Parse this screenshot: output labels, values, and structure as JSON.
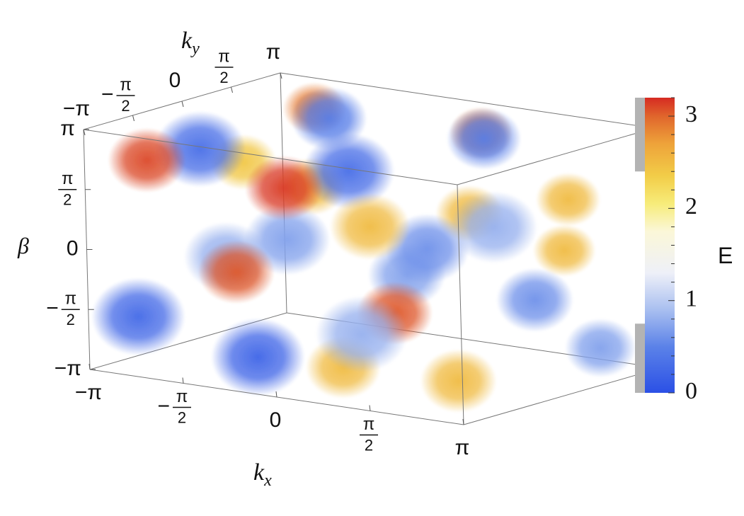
{
  "chart_data": {
    "type": "volume",
    "axes": {
      "x": {
        "label": "k",
        "sub": "x",
        "range": [
          -3.14159,
          3.14159
        ],
        "ticks": [
          {
            "v": -3.14159,
            "kind": "t",
            "t": "−π"
          },
          {
            "v": -1.5708,
            "kind": "f",
            "sign": "−",
            "num": "π",
            "den": "2"
          },
          {
            "v": 0,
            "kind": "t",
            "t": "0"
          },
          {
            "v": 1.5708,
            "kind": "f",
            "sign": "",
            "num": "π",
            "den": "2"
          },
          {
            "v": 3.14159,
            "kind": "t",
            "t": "π"
          }
        ]
      },
      "y": {
        "label": "k",
        "sub": "y",
        "range": [
          -3.14159,
          3.14159
        ],
        "ticks": [
          {
            "v": -3.14159,
            "kind": "t",
            "t": "−π"
          },
          {
            "v": -1.5708,
            "kind": "f",
            "sign": "−",
            "num": "π",
            "den": "2"
          },
          {
            "v": 0,
            "kind": "t",
            "t": "0"
          },
          {
            "v": 1.5708,
            "kind": "f",
            "sign": "",
            "num": "π",
            "den": "2"
          },
          {
            "v": 3.14159,
            "kind": "t",
            "t": "π"
          }
        ]
      },
      "z": {
        "label": "β",
        "range": [
          -3.14159,
          3.14159
        ],
        "ticks": [
          {
            "v": 3.14159,
            "kind": "t",
            "t": "π"
          },
          {
            "v": 1.5708,
            "kind": "f",
            "sign": "",
            "num": "π",
            "den": "2"
          },
          {
            "v": 0,
            "kind": "t",
            "t": "0"
          },
          {
            "v": -1.5708,
            "kind": "f",
            "sign": "−",
            "num": "π",
            "den": "2"
          },
          {
            "v": -3.14159,
            "kind": "t",
            "t": "−π"
          }
        ]
      }
    },
    "colorbar": {
      "label": "E",
      "range": [
        0,
        3.2
      ],
      "ticks": [
        {
          "v": 0,
          "t": "0"
        },
        {
          "v": 1,
          "t": "1"
        },
        {
          "v": 2,
          "t": "2"
        },
        {
          "v": 3,
          "t": "3"
        }
      ],
      "visible_bands": [
        [
          0,
          0.75
        ],
        [
          2.4,
          3.2
        ]
      ],
      "stops": [
        {
          "v": 0.0,
          "c": "#2b50e6"
        },
        {
          "v": 0.5,
          "c": "#5b82e8"
        },
        {
          "v": 0.9,
          "c": "#a9bff0"
        },
        {
          "v": 1.3,
          "c": "#eef0f8"
        },
        {
          "v": 1.75,
          "c": "#fbf7d8"
        },
        {
          "v": 2.05,
          "c": "#f7ec7a"
        },
        {
          "v": 2.35,
          "c": "#f2cd48"
        },
        {
          "v": 2.7,
          "c": "#eea33a"
        },
        {
          "v": 3.0,
          "c": "#e0652c"
        },
        {
          "v": 3.2,
          "c": "#d62b22"
        }
      ],
      "mask_color": "#b3b3b3"
    },
    "blobs": {
      "low": [
        [
          -1.9,
          -1.8,
          2.6,
          0.3
        ],
        [
          0.6,
          -1.8,
          2.6,
          0.3
        ],
        [
          1.3,
          1.2,
          2.9,
          0.45
        ],
        [
          -1.2,
          1.0,
          2.9,
          0.45
        ],
        [
          -2.8,
          -2.2,
          -1.9,
          0.25
        ],
        [
          -0.8,
          -2.2,
          -2.5,
          0.2
        ],
        [
          1.2,
          -0.5,
          0.4,
          0.6
        ],
        [
          2.3,
          0.8,
          -1.0,
          0.6
        ],
        [
          -1.0,
          -0.8,
          0.2,
          0.7
        ],
        [
          0.2,
          0.7,
          -0.8,
          0.7
        ],
        [
          2.8,
          1.9,
          -2.4,
          0.7
        ],
        [
          0.8,
          -1.9,
          -1.6,
          0.8
        ],
        [
          -2.2,
          -0.5,
          -0.6,
          0.8
        ],
        [
          2.6,
          -1.0,
          1.4,
          0.8
        ]
      ],
      "high": [
        [
          -2.8,
          -1.8,
          2.1,
          3.1
        ],
        [
          -0.5,
          -1.8,
          1.9,
          3.15
        ],
        [
          -1.5,
          -1.5,
          -0.6,
          3.05
        ],
        [
          1.1,
          -1.4,
          -1.1,
          3.05
        ],
        [
          -1.6,
          1.3,
          3.0,
          2.9
        ],
        [
          1.2,
          1.3,
          3.0,
          2.9
        ],
        [
          0.1,
          -1.2,
          -2.8,
          2.5
        ],
        [
          2.2,
          -1.5,
          -2.6,
          2.5
        ],
        [
          -1.0,
          0.0,
          1.4,
          2.5
        ],
        [
          1.5,
          0.3,
          1.2,
          2.5
        ],
        [
          2.8,
          1.0,
          1.7,
          2.5
        ],
        [
          2.5,
          1.4,
          0.2,
          2.5
        ],
        [
          -2.4,
          0.5,
          1.6,
          2.4
        ],
        [
          1.2,
          -2.3,
          1.4,
          2.5
        ]
      ]
    }
  }
}
